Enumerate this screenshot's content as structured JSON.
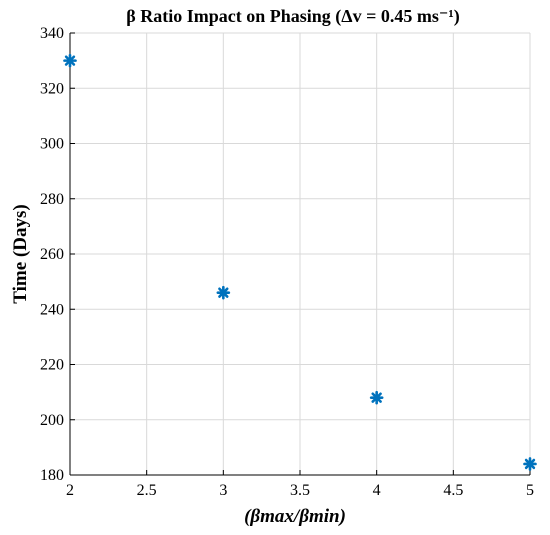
{
  "chart_data": {
    "type": "scatter",
    "title": "β Ratio Impact on Phasing (Δv = 0.45 ms⁻¹)",
    "xlabel": "(βmax/βmin)",
    "ylabel": "Time (Days)",
    "xlim": [
      2,
      5
    ],
    "ylim": [
      180,
      340
    ],
    "xticks": [
      "2",
      "2.5",
      "3",
      "3.5",
      "4",
      "4.5",
      "5"
    ],
    "yticks": [
      "180",
      "200",
      "220",
      "240",
      "260",
      "280",
      "300",
      "320",
      "340"
    ],
    "grid": true,
    "marker": "asterisk",
    "marker_color": "#0072BD",
    "series": [
      {
        "x": [
          2,
          3,
          4,
          5
        ],
        "values": [
          330,
          246,
          208,
          184
        ]
      }
    ]
  }
}
